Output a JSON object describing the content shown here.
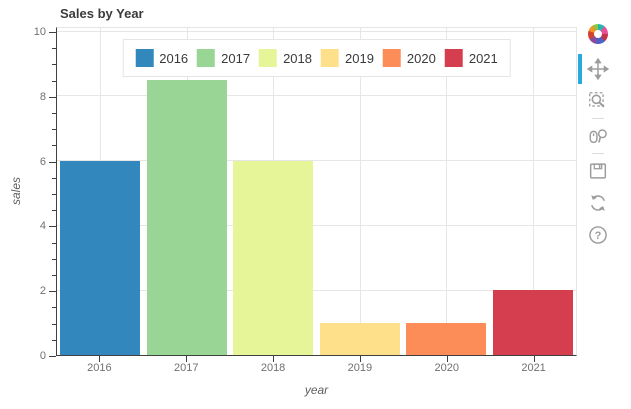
{
  "header": {
    "title": "Sales by Year"
  },
  "chart_data": {
    "type": "bar",
    "title": "Sales by Year",
    "categories": [
      "2016",
      "2017",
      "2018",
      "2019",
      "2020",
      "2021"
    ],
    "values": [
      6,
      8.5,
      6,
      1,
      1,
      2
    ],
    "bar_colors": [
      "#3288bd",
      "#99d594",
      "#e6f598",
      "#fee08b",
      "#fc8d59",
      "#d53e4f"
    ],
    "xlabel": "year",
    "ylabel": "sales",
    "ylim": [
      0,
      10
    ],
    "y_ticks": [
      0,
      2,
      4,
      6,
      8,
      10
    ],
    "y_minor_tick_step": 0.5,
    "grid": "on",
    "legend": {
      "position": "top-center",
      "orientation": "horizontal",
      "entries": [
        "2016",
        "2017",
        "2018",
        "2019",
        "2020",
        "2021"
      ]
    }
  },
  "toolbar": {
    "logo": "bokeh-logo",
    "active_tool": "pan",
    "active_color": "#26aae1",
    "icon_color": "#9c9c9c",
    "tools": [
      "pan",
      "box-zoom",
      "wheel-zoom",
      "save",
      "reset",
      "help"
    ]
  },
  "icons": {
    "help_glyph": "?"
  },
  "colors": {
    "grid": "#e6e6e6",
    "axis_line": "#404040",
    "tick_label": "#707070",
    "title_text": "#3b3b3b"
  }
}
